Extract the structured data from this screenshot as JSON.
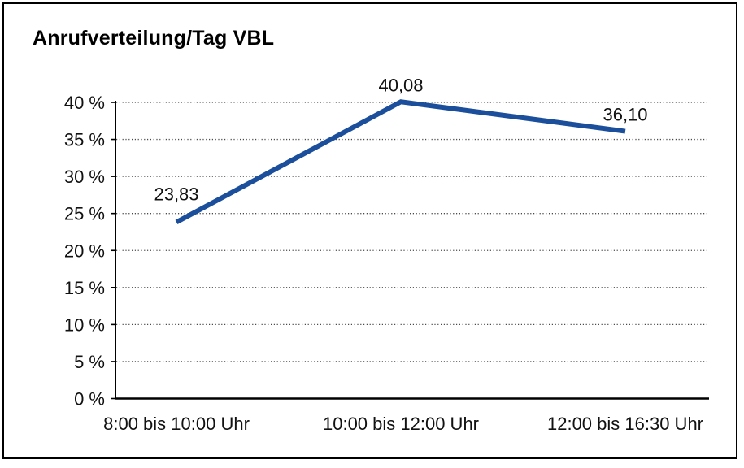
{
  "page": {
    "title": "Anrufverteilung/Tag VBL"
  },
  "chart_data": {
    "type": "line",
    "title": "Anrufverteilung/Tag VBL",
    "categories": [
      "8:00 bis 10:00 Uhr",
      "10:00 bis 12:00 Uhr",
      "12:00 bis 16:30 Uhr"
    ],
    "values": [
      23.83,
      40.08,
      36.1
    ],
    "value_labels": [
      "23,83",
      "40,08",
      "36,10"
    ],
    "series_name": "Anrufverteilung/Tag VBL",
    "xlabel": "",
    "ylabel": "",
    "ylim": [
      0,
      40
    ],
    "y_ticks": [
      0,
      5,
      10,
      15,
      20,
      25,
      30,
      35,
      40
    ],
    "y_tick_labels": [
      "0 %",
      "5 %",
      "10 %",
      "15 %",
      "20 %",
      "25 %",
      "30 %",
      "35 %",
      "40 %"
    ],
    "grid": "horizontal-dotted",
    "legend": "none",
    "colors": {
      "line": "#1b4e9b",
      "axis": "#000000",
      "grid_dots": "#4a4a4a",
      "text": "#111111",
      "background": "#ffffff",
      "border": "#000000"
    }
  }
}
